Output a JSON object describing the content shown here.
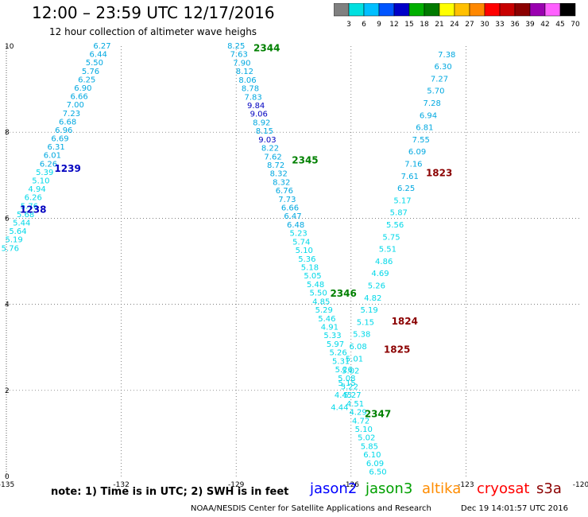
{
  "header": {
    "title": "12:00 – 23:59 UTC 12/17/2016",
    "subtitle": "12 hour collection of altimeter wave heighs"
  },
  "legend": {
    "labels": [
      "3",
      "6",
      "9",
      "12",
      "15",
      "18",
      "21",
      "24",
      "27",
      "30",
      "33",
      "36",
      "39",
      "42",
      "45",
      "70",
      "(ft)"
    ],
    "colors": [
      "#808080",
      "#00e0e0",
      "#00bfff",
      "#0055ff",
      "#0000c8",
      "#00b000",
      "#007a00",
      "#ffff00",
      "#ffc000",
      "#ff8800",
      "#ff0000",
      "#c80000",
      "#8b0000",
      "#9a00b0",
      "#ff60ff",
      "#000000"
    ]
  },
  "footer": {
    "note": "note: 1) Time is in UTC; 2) SWH is in feet",
    "satellites": [
      {
        "name": "jason2",
        "color": "#0000ff"
      },
      {
        "name": "jason3",
        "color": "#00a000"
      },
      {
        "name": "altika",
        "color": "#ff8c00"
      },
      {
        "name": "cryosat",
        "color": "#ff0000"
      },
      {
        "name": "s3a",
        "color": "#8b0000"
      }
    ],
    "credit": "NOAA/NESDIS Center for Satellite Applications and Research",
    "timestamp": "Dec 19 14:01:57 UTC 2016"
  },
  "chart_data": {
    "type": "scatter",
    "xlim": [
      -135,
      -120
    ],
    "ylim": [
      0,
      10
    ],
    "x_ticks": [
      "-135",
      "-132",
      "-129",
      "-126",
      "-123",
      "-120"
    ],
    "y_ticks": [
      "0",
      "2",
      "4",
      "6",
      "8",
      "10"
    ],
    "grid": true,
    "level_colors": {
      "low": "#00d8e8",
      "mid": "#00a8e0",
      "high": "#0000c0"
    },
    "tracks": [
      {
        "x_start": -132.5,
        "y_start": 10,
        "x_end": -134.9,
        "y_end": 5.3,
        "values": [
          "6.27",
          "6.44",
          "5.50",
          "5.76",
          "6.25",
          "6.90",
          "6.66",
          "7.00",
          "7.23",
          "6.68",
          "6.96",
          "6.69",
          "6.31",
          "6.01",
          "6.26",
          "5.39",
          "5.10",
          "4.94",
          "6.26",
          "5.76",
          "5.68",
          "5.44",
          "5.64",
          "5.19",
          "5.76"
        ],
        "levels": [
          "mid",
          "mid",
          "mid",
          "mid",
          "mid",
          "mid",
          "mid",
          "mid",
          "mid",
          "mid",
          "mid",
          "mid",
          "mid",
          "mid",
          "mid",
          "low",
          "low",
          "low",
          "low",
          "low",
          "low",
          "low",
          "low",
          "low",
          "low"
        ]
      },
      {
        "x_start": -129.0,
        "y_start": 10,
        "x_end": -125.3,
        "y_end": 0.1,
        "values": [
          "8.25",
          "7.63",
          "7.90",
          "8.12",
          "8.06",
          "8.78",
          "7.83",
          "9.84",
          "9.06",
          "8.92",
          "8.15",
          "9.03",
          "8.22",
          "7.62",
          "8.72",
          "8.32",
          "8.32",
          "6.76",
          "7.73",
          "6.66",
          "6.47",
          "6.48",
          "5.23",
          "5.74",
          "5.10",
          "5.36",
          "5.18",
          "5.05",
          "5.48",
          "5.50",
          "4.85",
          "5.29",
          "5.46",
          "4.91",
          "5.33",
          "5.97",
          "5.26",
          "5.31",
          "5.26",
          "5.08",
          "5.22",
          "5.27",
          "4.51",
          "4.29",
          "4.72",
          "5.10",
          "5.02",
          "5.85",
          "6.10",
          "6.09",
          "6.50"
        ],
        "levels": [
          "mid",
          "mid",
          "mid",
          "mid",
          "mid",
          "mid",
          "mid",
          "high",
          "high",
          "mid",
          "mid",
          "high",
          "mid",
          "mid",
          "mid",
          "mid",
          "mid",
          "mid",
          "mid",
          "mid",
          "mid",
          "mid",
          "low",
          "low",
          "low",
          "low",
          "low",
          "low",
          "low",
          "low",
          "low",
          "low",
          "low",
          "low",
          "low",
          "low",
          "low",
          "low",
          "low",
          "low",
          "low",
          "low",
          "low",
          "low",
          "low",
          "low",
          "low",
          "low",
          "low",
          "low",
          "low"
        ]
      },
      {
        "x_start": -123.5,
        "y_start": 9.8,
        "x_end": -126.3,
        "y_end": 1.6,
        "values": [
          "7.38",
          "6.30",
          "7.27",
          "5.70",
          "7.28",
          "6.94",
          "6.81",
          "7.55",
          "6.09",
          "7.16",
          "7.61",
          "6.25",
          "5.17",
          "5.87",
          "5.56",
          "5.75",
          "5.51",
          "4.86",
          "4.69",
          "5.26",
          "4.82",
          "5.19",
          "5.15",
          "5.38",
          "6.08",
          "5.01",
          "5.02",
          "5.15",
          "4.45",
          "4.44"
        ],
        "levels": [
          "mid",
          "mid",
          "mid",
          "mid",
          "mid",
          "mid",
          "mid",
          "mid",
          "mid",
          "mid",
          "mid",
          "mid",
          "low",
          "low",
          "low",
          "low",
          "low",
          "low",
          "low",
          "low",
          "low",
          "low",
          "low",
          "low",
          "low",
          "low",
          "low",
          "low",
          "low",
          "low"
        ]
      }
    ],
    "labels": [
      {
        "text": "2344",
        "x": -128.2,
        "y": 9.95,
        "color": "#008000"
      },
      {
        "text": "1239",
        "x": -133.4,
        "y": 7.15,
        "color": "#0000c0"
      },
      {
        "text": "2345",
        "x": -127.2,
        "y": 7.35,
        "color": "#008000"
      },
      {
        "text": "1823",
        "x": -123.7,
        "y": 7.05,
        "color": "#8b0000"
      },
      {
        "text": "1238",
        "x": -134.3,
        "y": 6.2,
        "color": "#0000c0"
      },
      {
        "text": "2346",
        "x": -126.2,
        "y": 4.25,
        "color": "#008000"
      },
      {
        "text": "1824",
        "x": -124.6,
        "y": 3.6,
        "color": "#8b0000"
      },
      {
        "text": "1825",
        "x": -124.8,
        "y": 2.95,
        "color": "#8b0000"
      },
      {
        "text": "2347",
        "x": -125.3,
        "y": 1.45,
        "color": "#008000"
      }
    ]
  }
}
